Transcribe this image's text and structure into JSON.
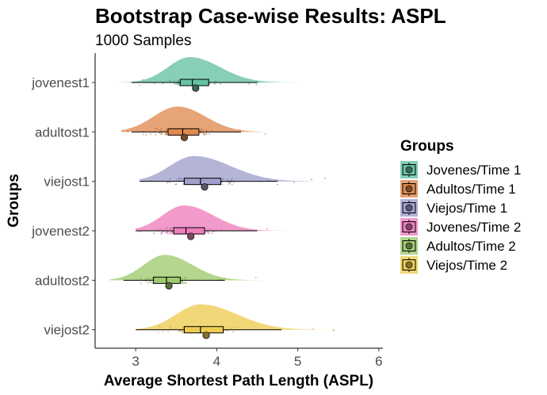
{
  "chart_data": {
    "type": "raincloud",
    "title": "Bootstrap Case-wise Results: ASPL",
    "subtitle": "1000 Samples",
    "xlabel": "Average Shortest Path Length (ASPL)",
    "ylabel": "Groups",
    "xlim": [
      2.5,
      6.05
    ],
    "xticks": [
      3,
      4,
      5,
      6
    ],
    "grid": false,
    "legend": {
      "title": "Groups",
      "position": "right",
      "entries": [
        "Jovenes/Time 1",
        "Adultos/Time 1",
        "Viejos/Time 1",
        "Jovenes/Time 2",
        "Adultos/Time 2",
        "Viejos/Time 2"
      ]
    },
    "categories": [
      "jovenest1",
      "adultost1",
      "viejost1",
      "jovenest2",
      "adultost2",
      "viejost2"
    ],
    "series": [
      {
        "category": "jovenest1",
        "legend": "Jovenes/Time 1",
        "color": "#66c2a5",
        "density_mode": 3.67,
        "density_sd_left": 0.27,
        "density_sd_right": 0.37,
        "density_min": 2.75,
        "density_max": 5.0,
        "q1": 3.55,
        "median": 3.7,
        "q3": 3.9,
        "whisker_low": 2.95,
        "whisker_high": 4.5,
        "mean": 3.74,
        "points_min": 2.95,
        "points_max": 4.6
      },
      {
        "category": "adultost1",
        "legend": "Adultos/Time 1",
        "color": "#e08a4f",
        "density_mode": 3.52,
        "density_sd_left": 0.3,
        "density_sd_right": 0.34,
        "density_min": 2.82,
        "density_max": 4.6,
        "q1": 3.4,
        "median": 3.58,
        "q3": 3.78,
        "whisker_low": 2.95,
        "whisker_high": 4.3,
        "mean": 3.6,
        "points_min": 2.9,
        "points_max": 4.65
      },
      {
        "category": "viejost1",
        "legend": "Viejos/Time 1",
        "color": "#9f9fcc",
        "density_mode": 3.72,
        "density_sd_left": 0.3,
        "density_sd_right": 0.45,
        "density_min": 3.05,
        "density_max": 5.2,
        "q1": 3.6,
        "median": 3.8,
        "q3": 4.05,
        "whisker_low": 3.05,
        "whisker_high": 4.75,
        "mean": 3.85,
        "points_min": 3.05,
        "points_max": 5.45
      },
      {
        "category": "jovenest2",
        "legend": "Jovenes/Time 2",
        "color": "#ee7fbd",
        "density_mode": 3.6,
        "density_sd_left": 0.27,
        "density_sd_right": 0.36,
        "density_min": 3.0,
        "density_max": 5.0,
        "q1": 3.47,
        "median": 3.62,
        "q3": 3.85,
        "whisker_low": 3.0,
        "whisker_high": 4.5,
        "mean": 3.68,
        "points_min": 3.0,
        "points_max": 5.0
      },
      {
        "category": "adultost2",
        "legend": "Adultos/Time 2",
        "color": "#9fca6e",
        "density_mode": 3.36,
        "density_sd_left": 0.26,
        "density_sd_right": 0.34,
        "density_min": 2.68,
        "density_max": 4.58,
        "q1": 3.22,
        "median": 3.38,
        "q3": 3.55,
        "whisker_low": 2.85,
        "whisker_high": 4.1,
        "mean": 3.41,
        "points_min": 2.8,
        "points_max": 4.55
      },
      {
        "category": "viejost2",
        "legend": "Viejos/Time 2",
        "color": "#eecc52",
        "density_mode": 3.8,
        "density_sd_left": 0.3,
        "density_sd_right": 0.45,
        "density_min": 3.0,
        "density_max": 5.4,
        "q1": 3.6,
        "median": 3.8,
        "q3": 4.08,
        "whisker_low": 3.0,
        "whisker_high": 4.8,
        "mean": 3.87,
        "points_min": 2.98,
        "points_max": 5.65
      }
    ]
  }
}
